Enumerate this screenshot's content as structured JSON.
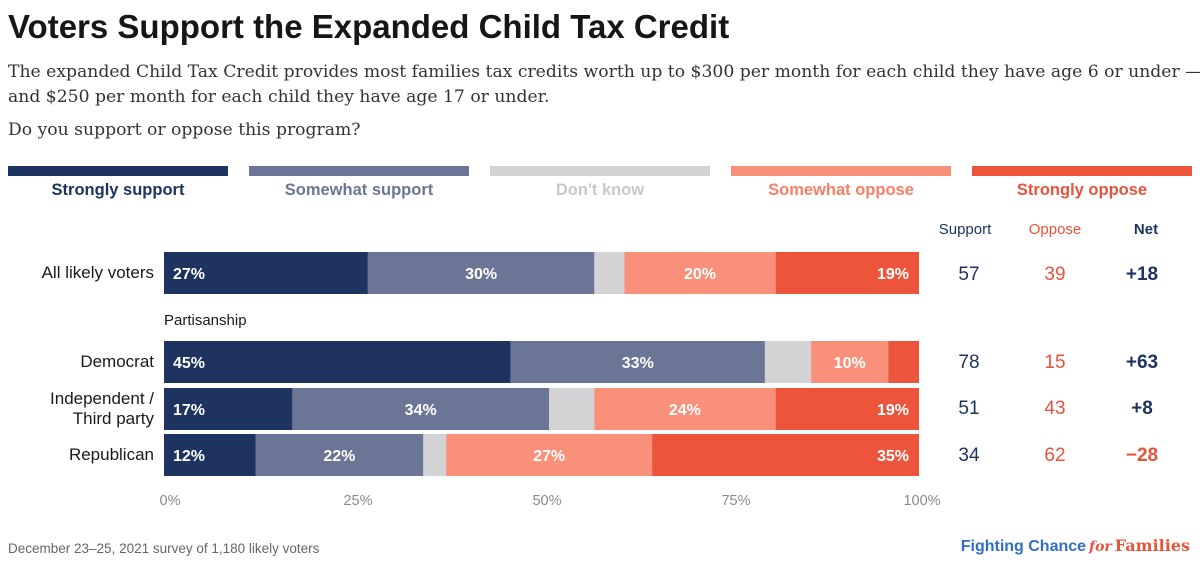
{
  "title": "Voters Support the Expanded Child Tax Credit",
  "subtitle_line1": "The expanded Child Tax Credit provides most families tax credits worth up to $300 per month for each child they have age 6 or under —",
  "subtitle_line2": "and $250 per month for each child they have age 17 or under.",
  "question": "Do you support or oppose this program?",
  "legend": [
    {
      "label": "Strongly support",
      "color": "#1d3461",
      "text_color": "#1d3461"
    },
    {
      "label": "Somewhat support",
      "color": "#6b7596",
      "text_color": "#6b7596"
    },
    {
      "label": "Don't know",
      "color": "#d3d3d6",
      "text_color": "#c8c8cc"
    },
    {
      "label": "Somewhat oppose",
      "color": "#f9907a",
      "text_color": "#f57f67"
    },
    {
      "label": "Strongly oppose",
      "color": "#ec553b",
      "text_color": "#e8533b"
    }
  ],
  "columns": {
    "support": "Support",
    "oppose": "Oppose",
    "net": "Net"
  },
  "group_label": "Partisanship",
  "chart_data": {
    "type": "bar",
    "orientation": "horizontal-stacked",
    "categories": [
      "All likely voters",
      "Democrat",
      "Independent / Third party",
      "Republican"
    ],
    "series": [
      {
        "name": "Strongly support",
        "values": [
          27,
          45,
          17,
          12
        ]
      },
      {
        "name": "Somewhat support",
        "values": [
          30,
          33,
          34,
          22
        ]
      },
      {
        "name": "Don't know",
        "values": [
          4,
          6,
          6,
          3
        ]
      },
      {
        "name": "Somewhat oppose",
        "values": [
          20,
          10,
          24,
          27
        ]
      },
      {
        "name": "Strongly oppose",
        "values": [
          19,
          4,
          19,
          35
        ]
      }
    ],
    "data_labels": [
      [
        "27%",
        "30%",
        "",
        "20%",
        "19%"
      ],
      [
        "45%",
        "33%",
        "",
        "10%",
        ""
      ],
      [
        "17%",
        "34%",
        "",
        "24%",
        "19%"
      ],
      [
        "12%",
        "22%",
        "",
        "27%",
        "35%"
      ]
    ],
    "xlim": [
      0,
      100
    ],
    "xticks": [
      "0%",
      "25%",
      "50%",
      "75%",
      "100%"
    ]
  },
  "rows": [
    {
      "label": "All likely voters",
      "support": "57",
      "oppose": "39",
      "net": "+18"
    },
    {
      "label_line1": "Democrat",
      "support": "78",
      "oppose": "15",
      "net": "+63"
    },
    {
      "label_line1": "Independent /",
      "label_line2": "Third party",
      "support": "51",
      "oppose": "43",
      "net": "+8"
    },
    {
      "label_line1": "Republican",
      "support": "34",
      "oppose": "62",
      "net": "−28"
    }
  ],
  "net_colors": {
    "positive": "#1d3461",
    "negative": "#e8533b"
  },
  "footer": "December 23–25, 2021 survey of 1,180 likely voters",
  "brand": {
    "part1": "Fighting Chance",
    "part2": "for",
    "part3": "Families"
  }
}
